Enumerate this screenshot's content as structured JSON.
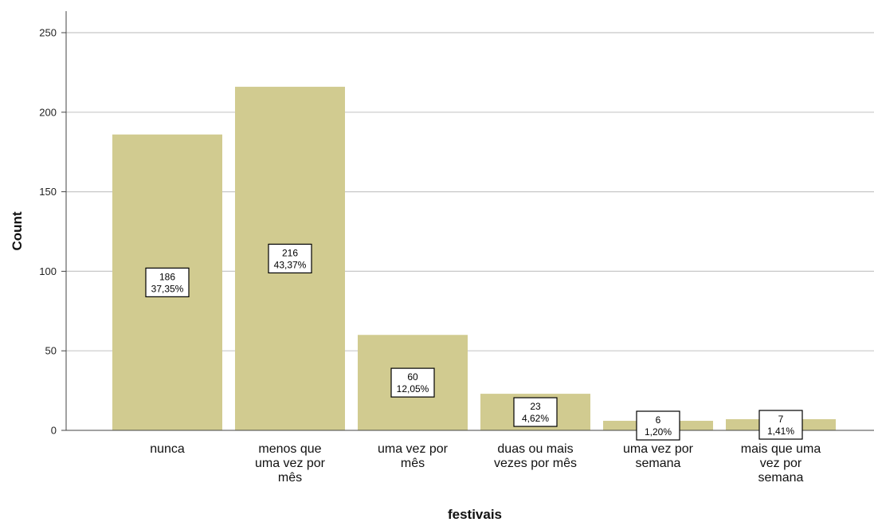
{
  "chart_data": {
    "type": "bar",
    "categories": [
      [
        "nunca"
      ],
      [
        "menos que",
        "uma vez por",
        "mês"
      ],
      [
        "uma vez por",
        "mês"
      ],
      [
        "duas ou mais",
        "vezes por mês"
      ],
      [
        "uma vez por",
        "semana"
      ],
      [
        "mais que uma",
        "vez por",
        "semana"
      ]
    ],
    "values": [
      186,
      216,
      60,
      23,
      6,
      7
    ],
    "data_labels": [
      [
        "186",
        "37,35%"
      ],
      [
        "216",
        "43,37%"
      ],
      [
        "60",
        "12,05%"
      ],
      [
        "23",
        "4,62%"
      ],
      [
        "6",
        "1,20%"
      ],
      [
        "7",
        "1,41%"
      ]
    ],
    "xlabel": "festivais",
    "ylabel": "Count",
    "ylim": [
      0,
      250
    ],
    "yticks": [
      "0",
      "50",
      "100",
      "150",
      "200",
      "250"
    ],
    "grid": true,
    "colors": {
      "bar": "#d1cb90",
      "grid": "#c8c8c8",
      "axis": "#444444"
    }
  }
}
